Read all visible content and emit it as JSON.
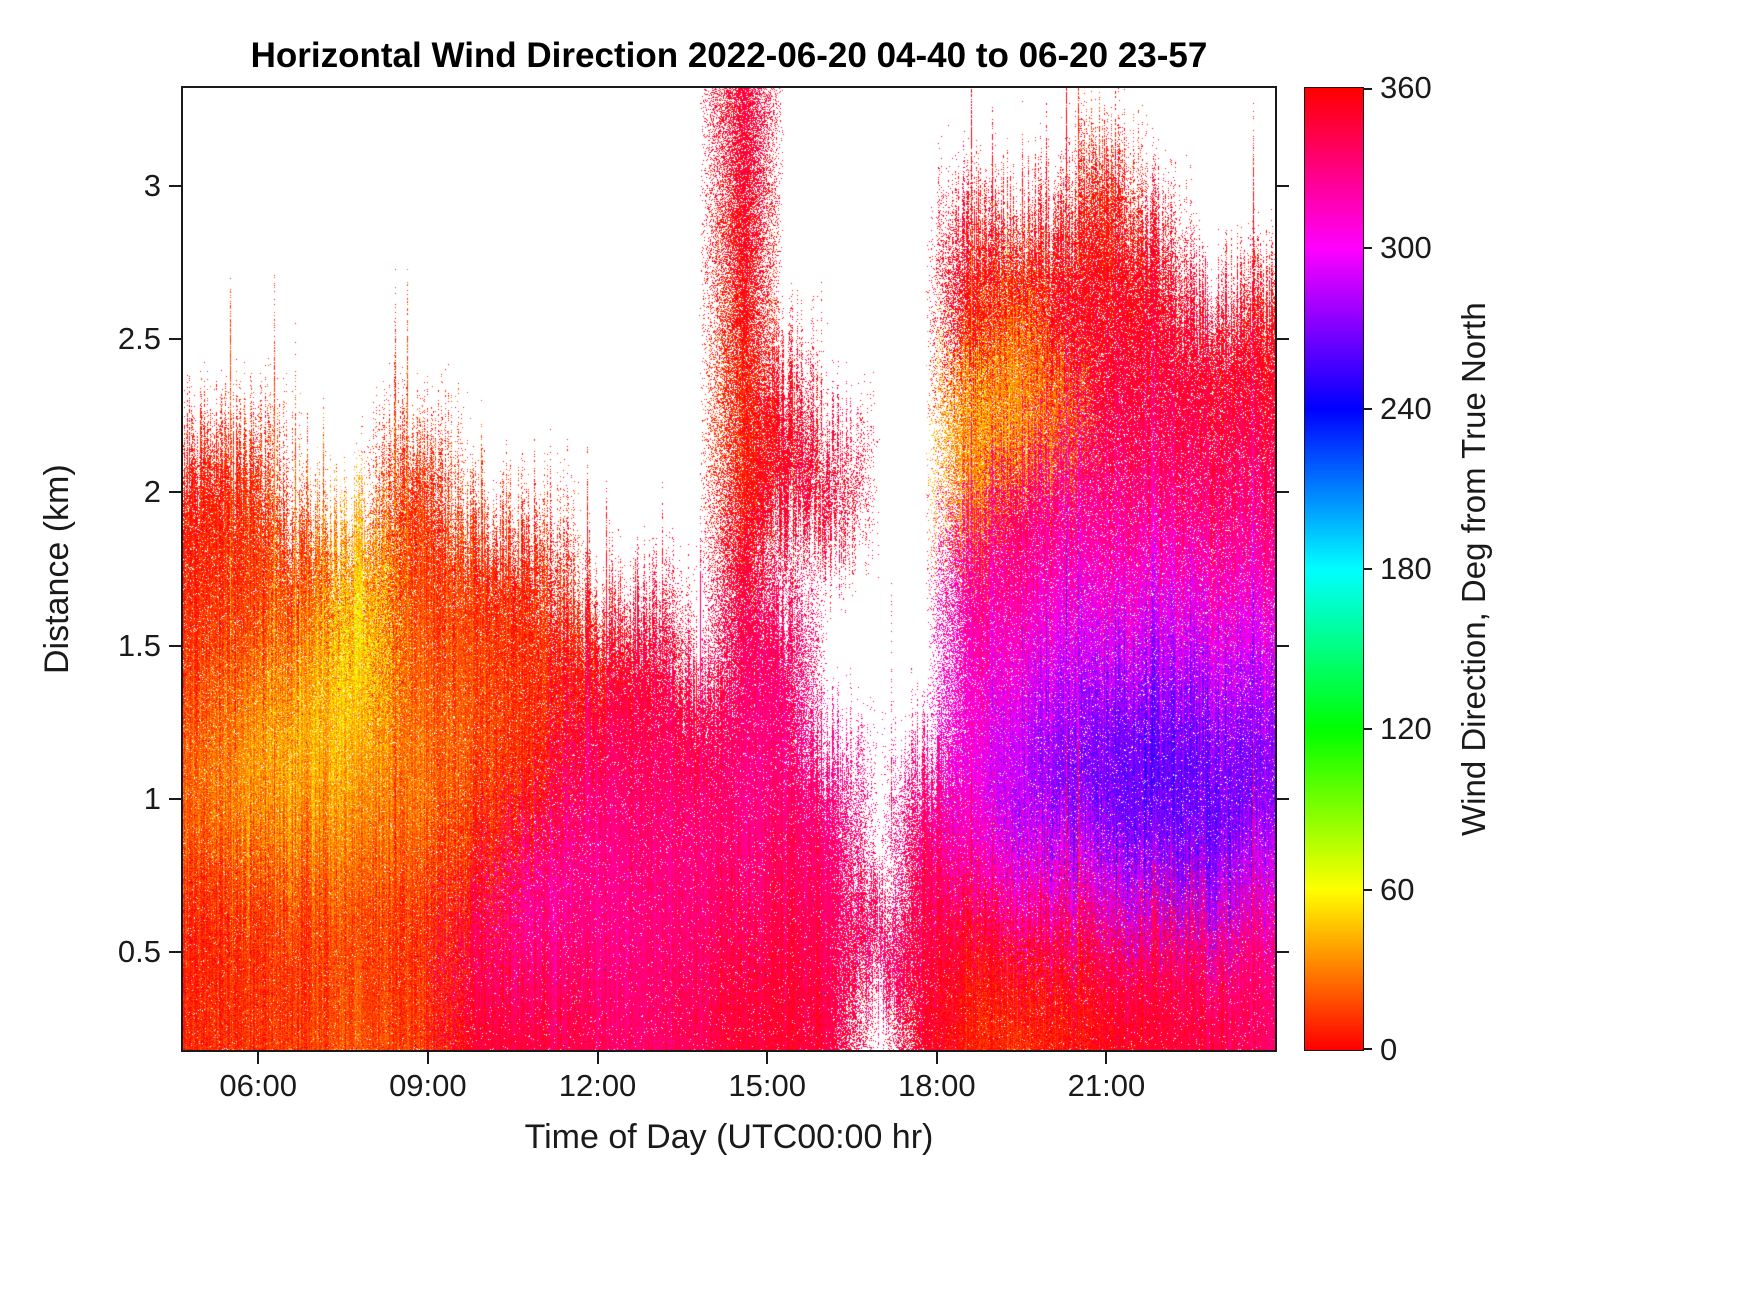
{
  "chart_data": {
    "type": "heatmap",
    "title": "Horizontal Wind Direction 2022-06-20 04-40 to 06-20 23-57",
    "xlabel": "Time of Day (UTC00:00 hr)",
    "ylabel": "Distance (km)",
    "value_unit": "deg from true north",
    "x_unit": "hour UTC",
    "y_unit": "km",
    "x_range": [
      4.67,
      23.98
    ],
    "y_range": [
      0.18,
      3.32
    ],
    "value_range": [
      0,
      360
    ],
    "colormap": "hsv",
    "grid": false,
    "x_ticks": [
      {
        "hour": 6,
        "label": "06:00"
      },
      {
        "hour": 9,
        "label": "09:00"
      },
      {
        "hour": 12,
        "label": "12:00"
      },
      {
        "hour": 15,
        "label": "15:00"
      },
      {
        "hour": 18,
        "label": "18:00"
      },
      {
        "hour": 21,
        "label": "21:00"
      }
    ],
    "y_ticks": [
      {
        "value": 3,
        "label": "3"
      },
      {
        "value": 2.5,
        "label": "2.5"
      },
      {
        "value": 2,
        "label": "2"
      },
      {
        "value": 1.5,
        "label": "1.5"
      },
      {
        "value": 1,
        "label": "1"
      },
      {
        "value": 0.5,
        "label": "0.5"
      }
    ],
    "colorbar": {
      "label": "Wind Direction, Deg from True North",
      "min": 0,
      "max": 360,
      "ticks": [
        {
          "value": 0,
          "label": "0"
        },
        {
          "value": 60,
          "label": "60"
        },
        {
          "value": 120,
          "label": "120"
        },
        {
          "value": 180,
          "label": "180"
        },
        {
          "value": 240,
          "label": "240"
        },
        {
          "value": 300,
          "label": "300"
        },
        {
          "value": 360,
          "label": "360"
        }
      ],
      "gradient_stops": [
        "#ff0000",
        "#ffff00",
        "#00ff00",
        "#00ffff",
        "#0000ff",
        "#ff00ff",
        "#ff0000"
      ]
    },
    "no_data_color": "#ffffff",
    "altitudes_km": [
      0.3,
      0.5,
      0.75,
      1.0,
      1.25,
      1.5,
      1.75,
      2.0,
      2.25,
      2.5,
      2.75,
      3.0,
      3.2
    ],
    "columns": [
      {
        "t": 4.8,
        "dir_deg": [
          10,
          5,
          15,
          25,
          20,
          12,
          8,
          5,
          null,
          null,
          null,
          null,
          null
        ]
      },
      {
        "t": 5.8,
        "dir_deg": [
          10,
          8,
          20,
          35,
          30,
          15,
          10,
          8,
          null,
          null,
          null,
          null,
          null
        ]
      },
      {
        "t": 6.8,
        "dir_deg": [
          15,
          12,
          25,
          40,
          45,
          30,
          15,
          null,
          null,
          null,
          null,
          null,
          null
        ]
      },
      {
        "t": 7.8,
        "dir_deg": [
          20,
          15,
          25,
          35,
          45,
          55,
          40,
          null,
          null,
          null,
          null,
          null,
          null
        ]
      },
      {
        "t": 8.8,
        "dir_deg": [
          15,
          10,
          20,
          30,
          25,
          20,
          15,
          10,
          null,
          null,
          null,
          null,
          null
        ]
      },
      {
        "t": 9.8,
        "dir_deg": [
          350,
          338,
          5,
          15,
          20,
          15,
          10,
          null,
          null,
          null,
          null,
          null,
          null
        ]
      },
      {
        "t": 10.8,
        "dir_deg": [
          345,
          330,
          320,
          0,
          10,
          10,
          5,
          null,
          null,
          null,
          null,
          null,
          null
        ]
      },
      {
        "t": 11.8,
        "dir_deg": [
          340,
          330,
          325,
          330,
          345,
          5,
          null,
          null,
          null,
          null,
          null,
          null,
          null
        ]
      },
      {
        "t": 12.8,
        "dir_deg": [
          335,
          330,
          330,
          335,
          340,
          350,
          null,
          null,
          null,
          null,
          null,
          null,
          null
        ]
      },
      {
        "t": 13.8,
        "dir_deg": [
          340,
          335,
          330,
          335,
          345,
          null,
          null,
          null,
          null,
          null,
          null,
          null,
          null
        ]
      },
      {
        "t": 14.6,
        "dir_deg": [
          350,
          345,
          335,
          330,
          335,
          340,
          350,
          5,
          10,
          5,
          0,
          355,
          350
        ]
      },
      {
        "t": 15.3,
        "dir_deg": [
          350,
          345,
          340,
          335,
          330,
          340,
          null,
          350,
          355,
          null,
          null,
          null,
          null
        ]
      },
      {
        "t": 16.1,
        "dir_deg": [
          345,
          340,
          335,
          330,
          null,
          null,
          null,
          350,
          null,
          null,
          null,
          null,
          null
        ]
      },
      {
        "t": 17.0,
        "dir_deg": [
          null,
          335,
          null,
          null,
          null,
          null,
          null,
          null,
          null,
          null,
          null,
          null,
          null
        ]
      },
      {
        "t": 17.8,
        "dir_deg": [
          350,
          345,
          340,
          330,
          null,
          null,
          null,
          null,
          null,
          null,
          null,
          null,
          null
        ]
      },
      {
        "t": 18.6,
        "dir_deg": [
          5,
          355,
          320,
          300,
          310,
          320,
          330,
          30,
          40,
          0,
          355,
          null,
          null
        ]
      },
      {
        "t": 19.4,
        "dir_deg": [
          10,
          350,
          310,
          280,
          290,
          310,
          325,
          340,
          35,
          30,
          0,
          null,
          null
        ]
      },
      {
        "t": 20.2,
        "dir_deg": [
          5,
          345,
          300,
          270,
          280,
          300,
          320,
          335,
          30,
          355,
          0,
          null,
          null
        ]
      },
      {
        "t": 21.0,
        "dir_deg": [
          355,
          340,
          290,
          265,
          270,
          290,
          315,
          330,
          345,
          350,
          0,
          5,
          null
        ]
      },
      {
        "t": 21.8,
        "dir_deg": [
          350,
          335,
          280,
          260,
          265,
          285,
          310,
          330,
          340,
          350,
          355,
          null,
          null
        ]
      },
      {
        "t": 22.6,
        "dir_deg": [
          345,
          330,
          275,
          260,
          270,
          290,
          315,
          335,
          345,
          350,
          null,
          null,
          null
        ]
      },
      {
        "t": 23.4,
        "dir_deg": [
          340,
          330,
          285,
          265,
          275,
          295,
          320,
          335,
          345,
          355,
          null,
          null,
          null
        ]
      },
      {
        "t": 23.9,
        "dir_deg": [
          335,
          325,
          290,
          270,
          280,
          300,
          325,
          340,
          350,
          0,
          null,
          null,
          null
        ]
      }
    ]
  }
}
